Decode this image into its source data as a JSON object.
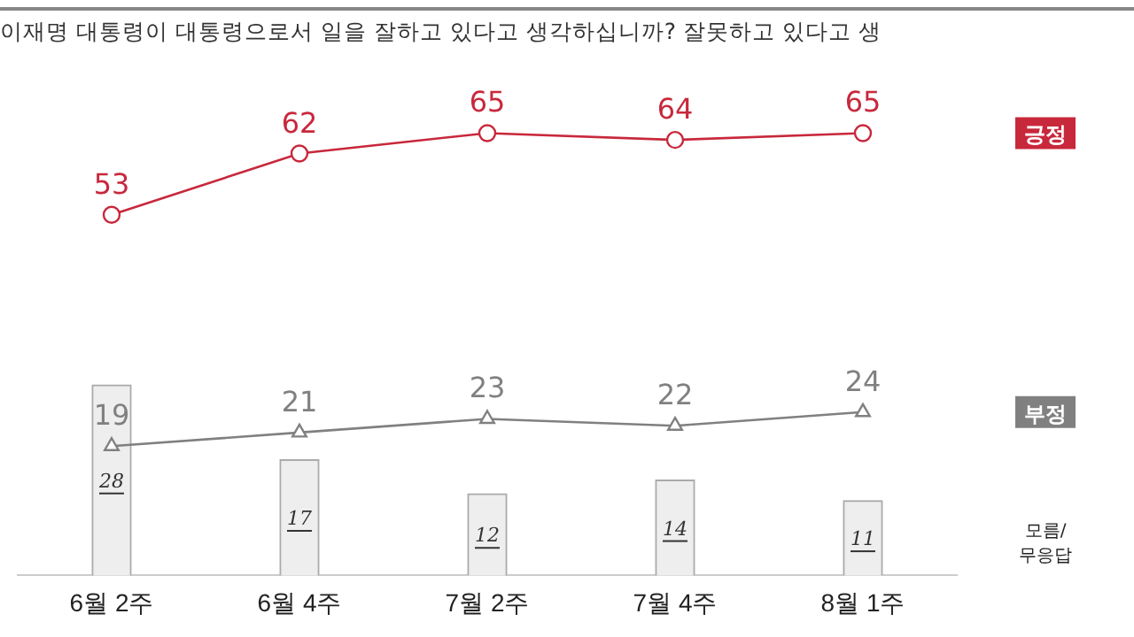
{
  "chart_data": {
    "type": "line",
    "title": "이재명 대통령이 대통령으로서 일을 잘하고 있다고 생각하십니까? 잘못하고 있다고 생",
    "categories": [
      "6월 2주",
      "6월 4주",
      "7월 2주",
      "7월 4주",
      "8월 1주"
    ],
    "series": [
      {
        "name": "긍정",
        "color": "#c8283c",
        "values": [
          53,
          62,
          65,
          64,
          65
        ]
      },
      {
        "name": "부정",
        "color": "#808080",
        "values": [
          19,
          21,
          23,
          22,
          24
        ],
        "marker": "triangle"
      },
      {
        "name": "모름/무응답",
        "type": "bar",
        "color": "#eeeeee",
        "values": [
          28,
          17,
          12,
          14,
          11
        ]
      }
    ],
    "marker": "circle",
    "data_labels": true,
    "legend": false,
    "grid": false,
    "tick_labels": "x"
  }
}
